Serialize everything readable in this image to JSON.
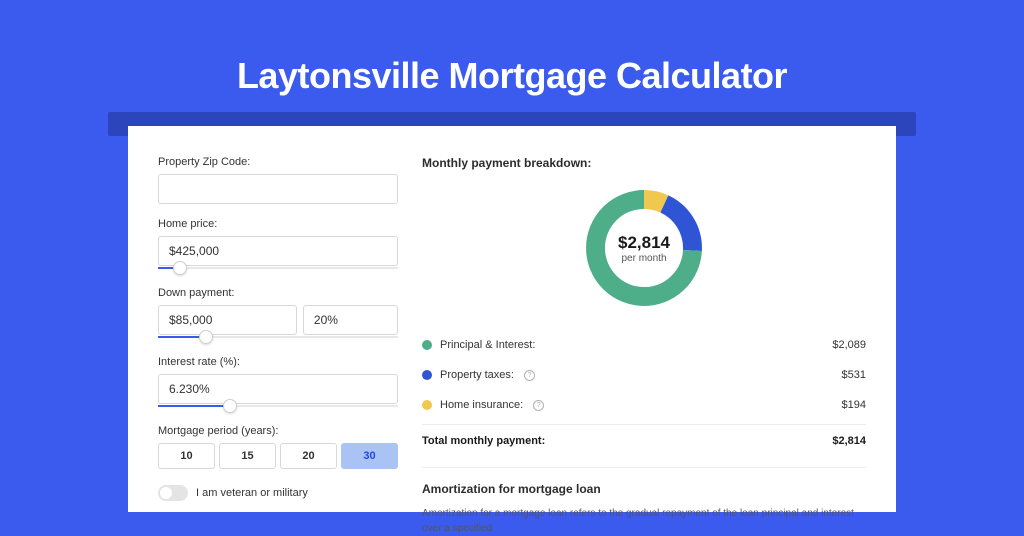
{
  "page": {
    "title": "Laytonsville Mortgage Calculator",
    "bg_color": "#3b5bef",
    "shadow_color": "#2c45bd",
    "card_bg": "#ffffff"
  },
  "form": {
    "zip": {
      "label": "Property Zip Code:",
      "value": ""
    },
    "home_price": {
      "label": "Home price:",
      "value": "$425,000",
      "slider_fill_pct": 9
    },
    "down_payment": {
      "label": "Down payment:",
      "amount": "$85,000",
      "percent": "20%",
      "slider_fill_pct": 20
    },
    "interest_rate": {
      "label": "Interest rate (%):",
      "value": "6.230%",
      "slider_fill_pct": 30
    },
    "period": {
      "label": "Mortgage period (years):",
      "options": [
        "10",
        "15",
        "20",
        "30"
      ],
      "active_index": 3
    },
    "veteran": {
      "label": "I am veteran or military",
      "checked": false
    }
  },
  "breakdown": {
    "title": "Monthly payment breakdown:",
    "donut": {
      "amount": "$2,814",
      "sub": "per month",
      "segments": [
        {
          "label": "Principal & Interest:",
          "value": "$2,089",
          "color": "#4fae8a",
          "frac": 0.742
        },
        {
          "label": "Property taxes:",
          "value": "$531",
          "color": "#2f55d4",
          "frac": 0.189,
          "has_info": true
        },
        {
          "label": "Home insurance:",
          "value": "$194",
          "color": "#f0c84f",
          "frac": 0.069,
          "has_info": true
        }
      ]
    },
    "total": {
      "label": "Total monthly payment:",
      "value": "$2,814"
    }
  },
  "amortization": {
    "title": "Amortization for mortgage loan",
    "text": "Amortization for a mortgage loan refers to the gradual repayment of the loan principal and interest over a specified"
  }
}
